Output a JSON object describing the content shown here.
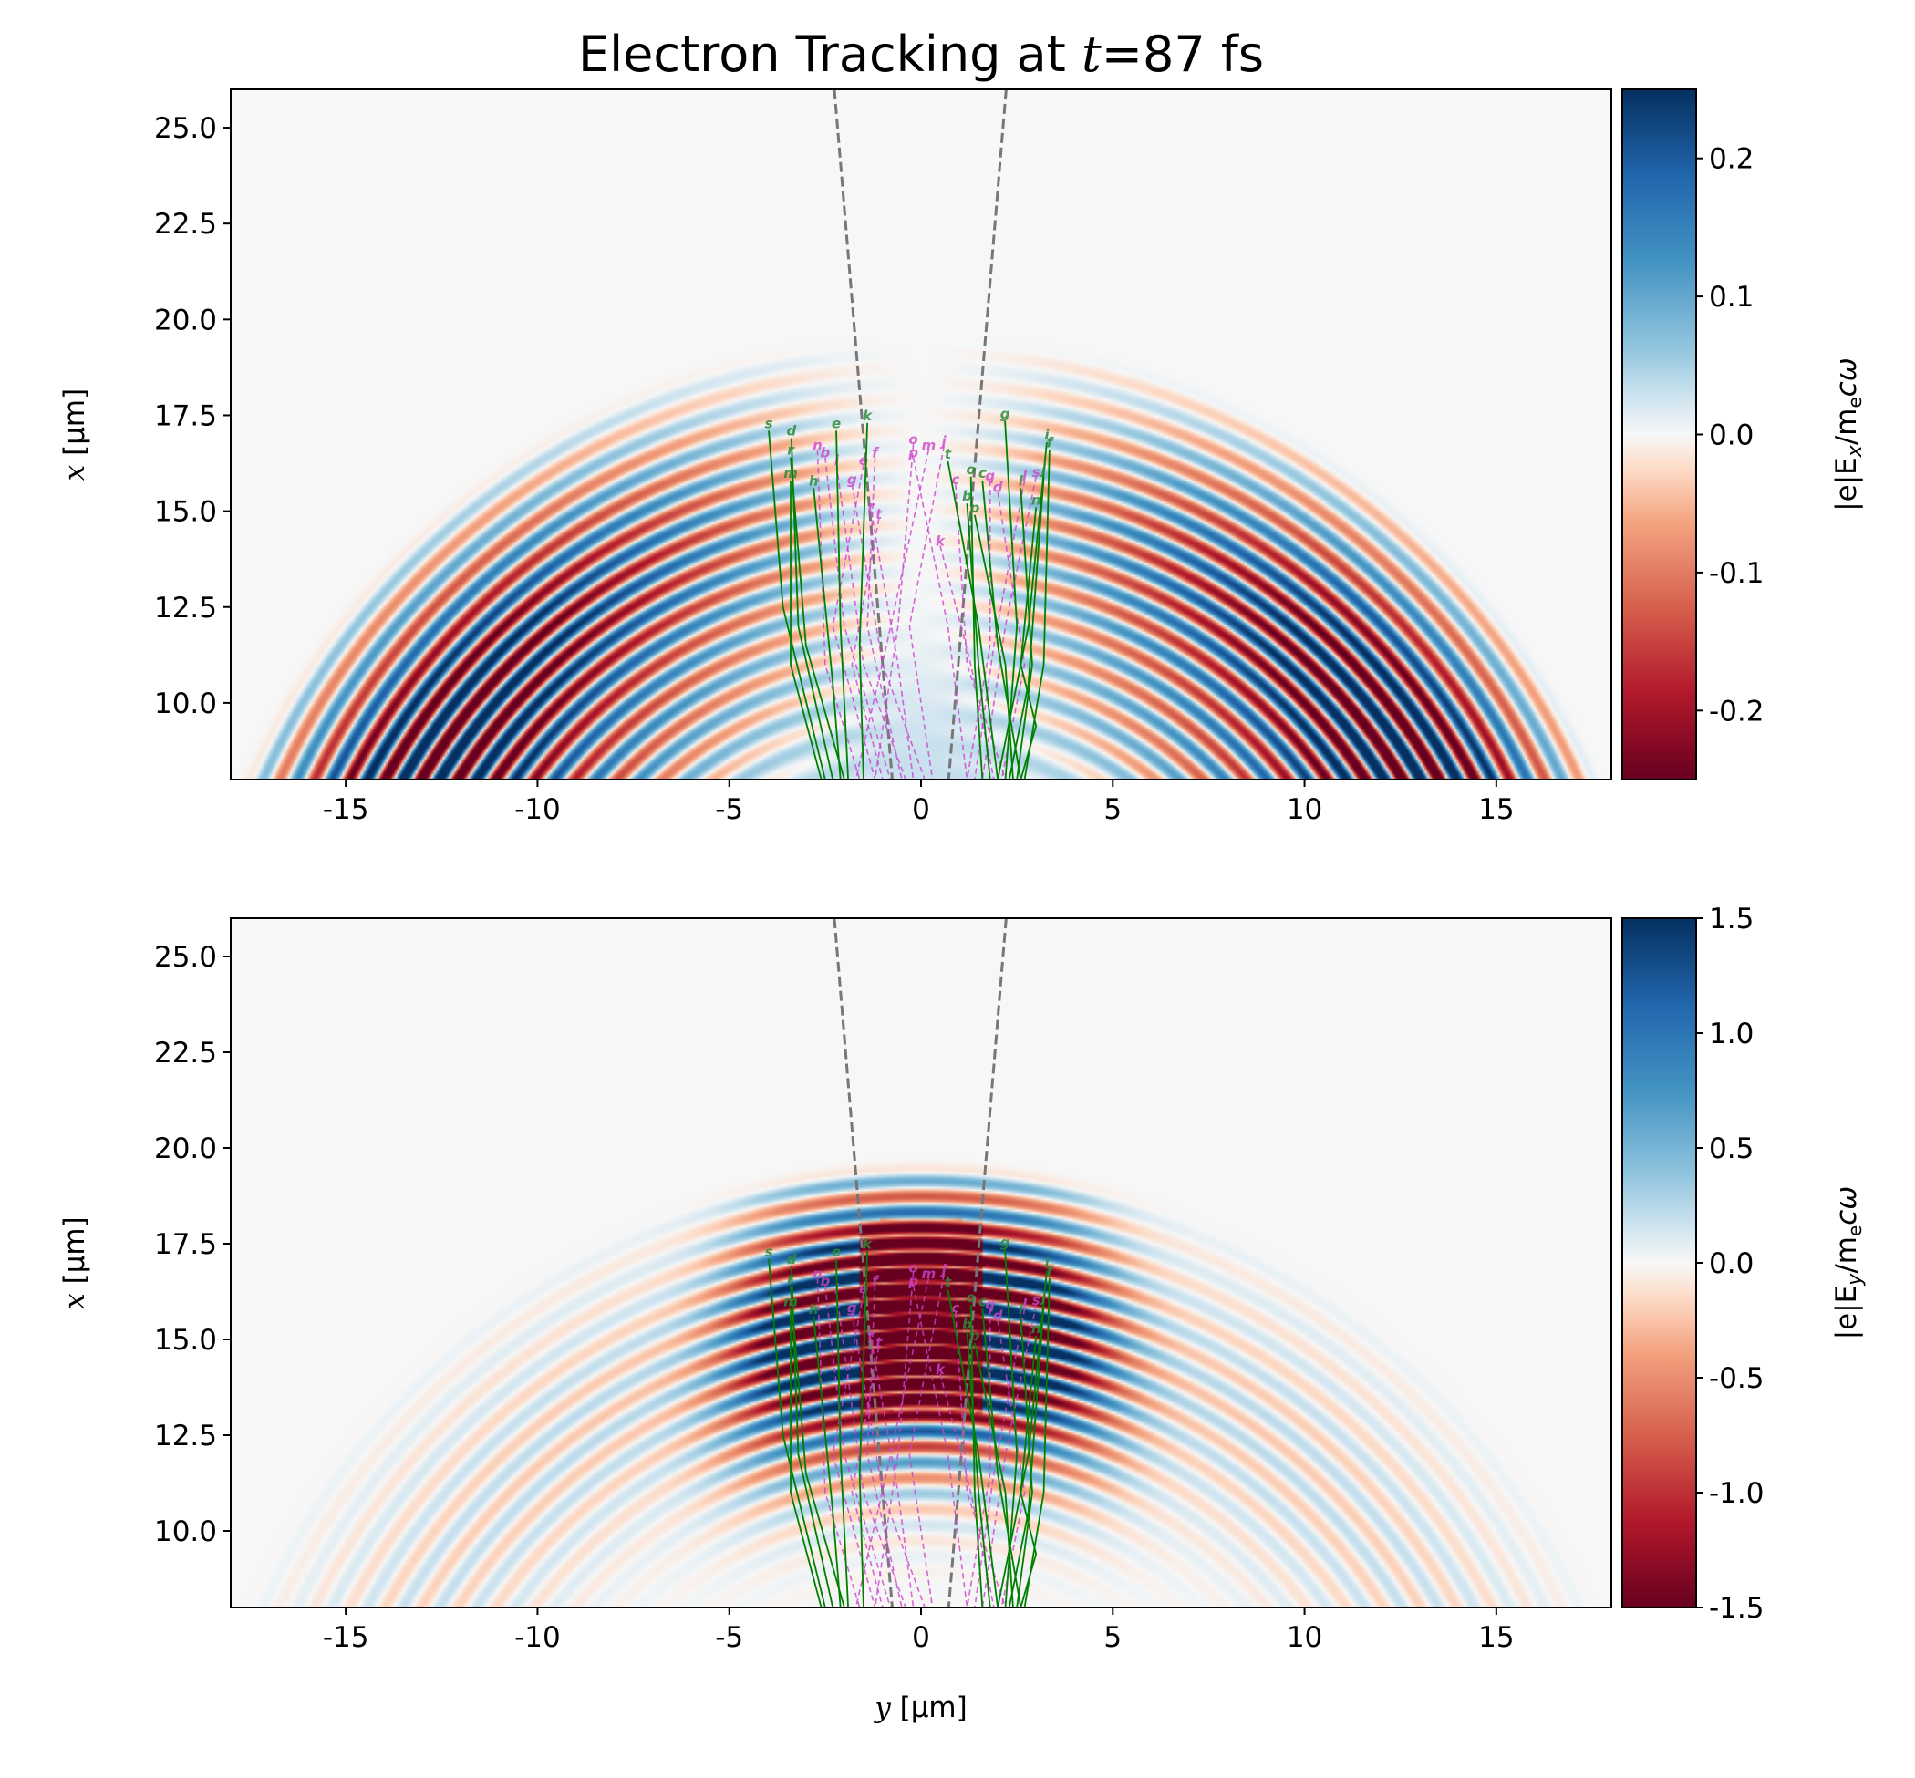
{
  "title": {
    "prefix": "Electron Tracking at ",
    "var": "t",
    "suffix": "=87 fs"
  },
  "chart_data": [
    {
      "type": "heatmap",
      "field": "Ex",
      "xlabel": {
        "var": "y",
        "unit": " [μm]"
      },
      "ylabel": {
        "var": "x",
        "unit": " [μm]"
      },
      "xlim": [
        -18,
        18
      ],
      "ylim": [
        8,
        26
      ],
      "xticks": [
        -15,
        -10,
        -5,
        0,
        5,
        10,
        15
      ],
      "xtick_labels": [
        "-15",
        "-10",
        "-5",
        "0",
        "5",
        "10",
        "15"
      ],
      "yticks": [
        10,
        12.5,
        15,
        17.5,
        20,
        22.5,
        25
      ],
      "ytick_labels": [
        "10.0",
        "12.5",
        "15.0",
        "17.5",
        "20.0",
        "22.5",
        "25.0"
      ],
      "colorbar": {
        "label": {
          "prefix": "|e|E",
          "sub": "x",
          "mid": "/m",
          "sub2": "e",
          "suffix": "cω"
        },
        "range": [
          -0.25,
          0.25
        ],
        "ticks": [
          0.2,
          0.1,
          0.0,
          -0.1,
          -0.2
        ],
        "tick_labels": [
          "0.2",
          "0.1",
          "0.0",
          "-0.1",
          "-0.2"
        ],
        "colormap": "RdBu_r"
      },
      "show_xlabel": false
    },
    {
      "type": "heatmap",
      "field": "Ey",
      "xlabel": {
        "var": "y",
        "unit": " [μm]"
      },
      "ylabel": {
        "var": "x",
        "unit": " [μm]"
      },
      "xlim": [
        -18,
        18
      ],
      "ylim": [
        8,
        26
      ],
      "xticks": [
        -15,
        -10,
        -5,
        0,
        5,
        10,
        15
      ],
      "xtick_labels": [
        "-15",
        "-10",
        "-5",
        "0",
        "5",
        "10",
        "15"
      ],
      "yticks": [
        10,
        12.5,
        15,
        17.5,
        20,
        22.5,
        25
      ],
      "ytick_labels": [
        "10.0",
        "12.5",
        "15.0",
        "17.5",
        "20.0",
        "22.5",
        "25.0"
      ],
      "colorbar": {
        "label": {
          "prefix": "|e|E",
          "sub": "y",
          "mid": "/m",
          "sub2": "e",
          "suffix": "cω"
        },
        "range": [
          -1.5,
          1.5
        ],
        "ticks": [
          1.5,
          1.0,
          0.5,
          0.0,
          -0.5,
          -1.0,
          -1.5
        ],
        "tick_labels": [
          "1.5",
          "1.0",
          "0.5",
          "0.0",
          "-0.5",
          "-1.0",
          "-1.5"
        ],
        "colormap": "RdBu_r"
      },
      "show_xlabel": true
    }
  ],
  "guide_lines": [
    {
      "points": [
        [
          -2.26,
          26
        ],
        [
          -0.75,
          8
        ]
      ]
    },
    {
      "points": [
        [
          2.22,
          26
        ],
        [
          0.72,
          8
        ]
      ]
    }
  ],
  "trajectories": {
    "green": [
      {
        "label": "s",
        "points": [
          [
            -3.97,
            17.1
          ],
          [
            -3.6,
            12.5
          ],
          [
            -2.5,
            8
          ]
        ]
      },
      {
        "label": "d",
        "points": [
          [
            -3.38,
            16.9
          ],
          [
            -3.2,
            12
          ],
          [
            -2.3,
            8
          ]
        ]
      },
      {
        "label": "r",
        "points": [
          [
            -3.4,
            16.4
          ],
          [
            -3.0,
            11.5
          ],
          [
            -2.0,
            8
          ]
        ]
      },
      {
        "label": "m",
        "points": [
          [
            -3.4,
            15.8
          ],
          [
            -3.4,
            11
          ],
          [
            -2.6,
            8
          ]
        ]
      },
      {
        "label": "h",
        "points": [
          [
            -2.8,
            15.6
          ],
          [
            -2.3,
            10.5
          ],
          [
            -2.1,
            8
          ]
        ]
      },
      {
        "label": "e",
        "points": [
          [
            -2.21,
            17.1
          ],
          [
            -2.1,
            12
          ],
          [
            -1.9,
            8
          ]
        ]
      },
      {
        "label": "k",
        "points": [
          [
            -1.4,
            17.3
          ],
          [
            -1.6,
            11.5
          ],
          [
            -1.5,
            8
          ]
        ]
      },
      {
        "label": "t",
        "points": [
          [
            0.7,
            16.3
          ],
          [
            1.5,
            12
          ],
          [
            2.0,
            8
          ]
        ]
      },
      {
        "label": "o",
        "points": [
          [
            1.3,
            15.9
          ],
          [
            1.4,
            11
          ],
          [
            1.6,
            8
          ]
        ]
      },
      {
        "label": "c",
        "points": [
          [
            1.6,
            15.8
          ],
          [
            2.0,
            11.5
          ],
          [
            2.6,
            8
          ]
        ]
      },
      {
        "label": "b",
        "points": [
          [
            1.2,
            15.2
          ],
          [
            1.5,
            11
          ],
          [
            1.8,
            8
          ]
        ]
      },
      {
        "label": "p",
        "points": [
          [
            1.4,
            14.9
          ],
          [
            2.2,
            11
          ],
          [
            2.4,
            8
          ]
        ]
      },
      {
        "label": "g",
        "points": [
          [
            2.19,
            17.35
          ],
          [
            2.5,
            12
          ],
          [
            2.2,
            8
          ]
        ]
      },
      {
        "label": "l",
        "points": [
          [
            2.6,
            15.6
          ],
          [
            2.9,
            11
          ],
          [
            2.5,
            8
          ]
        ]
      },
      {
        "label": "n",
        "points": [
          [
            3.0,
            15.1
          ],
          [
            2.6,
            11
          ],
          [
            3.0,
            9.4
          ],
          [
            2.6,
            8
          ]
        ]
      },
      {
        "label": "i",
        "points": [
          [
            3.28,
            16.8
          ],
          [
            2.8,
            12
          ],
          [
            2.0,
            8
          ]
        ]
      },
      {
        "label": "f",
        "points": [
          [
            3.35,
            16.6
          ],
          [
            3.2,
            11
          ],
          [
            2.7,
            8
          ]
        ]
      },
      {
        "label": "j",
        "points": [
          [
            3.2,
            15.9
          ],
          [
            2.8,
            10.5
          ],
          [
            2.3,
            8
          ]
        ]
      }
    ],
    "magenta": [
      {
        "label": "n",
        "points": [
          [
            -2.7,
            16.6
          ],
          [
            -2.5,
            11
          ],
          [
            -1.6,
            8
          ]
        ]
      },
      {
        "label": "b",
        "points": [
          [
            -2.5,
            16.4
          ],
          [
            -2.0,
            12
          ],
          [
            -0.8,
            8
          ]
        ]
      },
      {
        "label": "i",
        "points": [
          [
            -2.2,
            16.2
          ],
          [
            -1.5,
            11
          ],
          [
            -0.4,
            8
          ]
        ]
      },
      {
        "label": "e",
        "points": [
          [
            -1.5,
            16.2
          ],
          [
            -2.3,
            12
          ],
          [
            -1.2,
            8
          ]
        ]
      },
      {
        "label": "g",
        "points": [
          [
            -1.8,
            15.7
          ],
          [
            -1.0,
            11
          ],
          [
            0.1,
            8
          ]
        ]
      },
      {
        "label": "f",
        "points": [
          [
            -1.2,
            16.4
          ],
          [
            -1.4,
            12
          ],
          [
            -0.5,
            8
          ]
        ]
      },
      {
        "label": "r",
        "points": [
          [
            -1.3,
            15.0
          ],
          [
            -0.6,
            11
          ],
          [
            -0.2,
            8
          ]
        ]
      },
      {
        "label": "t",
        "points": [
          [
            -1.1,
            14.8
          ],
          [
            -1.8,
            11
          ],
          [
            -1.0,
            8
          ]
        ]
      },
      {
        "label": "o",
        "points": [
          [
            -0.2,
            16.75
          ],
          [
            -0.6,
            12
          ],
          [
            -1.2,
            8
          ]
        ]
      },
      {
        "label": "m",
        "points": [
          [
            0.2,
            16.6
          ],
          [
            -0.9,
            11.5
          ],
          [
            -1.7,
            8
          ]
        ]
      },
      {
        "label": "p",
        "points": [
          [
            -0.2,
            16.4
          ],
          [
            0.7,
            12
          ],
          [
            1.2,
            8
          ]
        ]
      },
      {
        "label": "j",
        "points": [
          [
            0.6,
            16.7
          ],
          [
            -0.3,
            12
          ],
          [
            0.3,
            8
          ]
        ]
      },
      {
        "label": "c",
        "points": [
          [
            0.9,
            15.7
          ],
          [
            1.2,
            11
          ],
          [
            2.2,
            8
          ]
        ]
      },
      {
        "label": "q",
        "points": [
          [
            1.8,
            15.8
          ],
          [
            1.8,
            11.5
          ],
          [
            1.2,
            8
          ]
        ]
      },
      {
        "label": "d",
        "points": [
          [
            2.0,
            15.5
          ],
          [
            2.7,
            11
          ],
          [
            2.1,
            8
          ]
        ]
      },
      {
        "label": "l",
        "points": [
          [
            2.7,
            15.8
          ],
          [
            1.9,
            11.5
          ],
          [
            1.4,
            8
          ]
        ]
      },
      {
        "label": "s",
        "points": [
          [
            3.0,
            15.9
          ],
          [
            2.2,
            12
          ],
          [
            1.6,
            8
          ]
        ]
      },
      {
        "label": "k",
        "points": [
          [
            0.5,
            14.1
          ],
          [
            1.3,
            11
          ],
          [
            1.9,
            8
          ]
        ]
      }
    ]
  },
  "colors": {
    "green": "#008000",
    "magenta": "#cc44cc",
    "guide": "#777777",
    "background": "#f5f5f5"
  }
}
